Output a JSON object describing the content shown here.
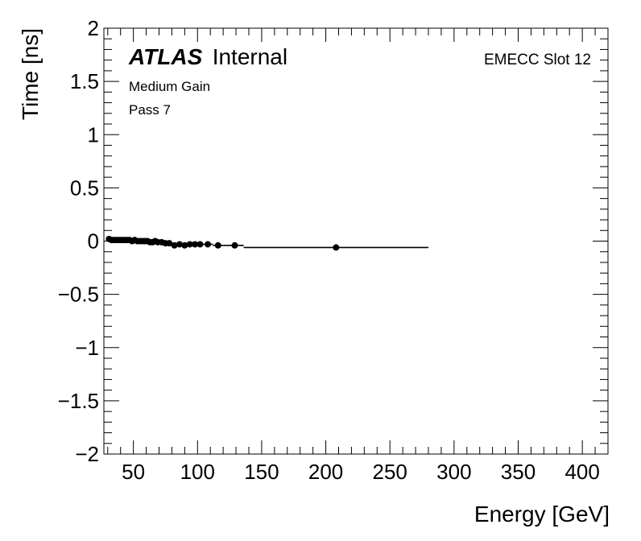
{
  "chart_data": {
    "type": "scatter",
    "title": "",
    "xlabel": "Energy [GeV]",
    "ylabel": "Time [ns]",
    "xlim": [
      27,
      420
    ],
    "ylim": [
      -2,
      2
    ],
    "x_ticks": [
      50,
      100,
      150,
      200,
      250,
      300,
      350,
      400
    ],
    "x_tick_labels": [
      "50",
      "100",
      "150",
      "200",
      "250",
      "300",
      "350",
      "400"
    ],
    "y_ticks": [
      2,
      1.5,
      1,
      0.5,
      0,
      -0.5,
      -1,
      -1.5,
      -2
    ],
    "y_tick_labels": [
      "2",
      "1.5",
      "1",
      "0.5",
      "0",
      "−0.5",
      "−1",
      "−1.5",
      "−2"
    ],
    "grid": false,
    "atlas_label": "ATLAS",
    "status_label": "Internal",
    "annotations": [
      "Medium Gain",
      "Pass 7"
    ],
    "slot_label": "EMECC Slot 12",
    "marker_color": "#000000",
    "points": [
      {
        "x": 31,
        "y": 0.02,
        "xlo": 30,
        "xhi": 32
      },
      {
        "x": 33,
        "y": 0.01,
        "xlo": 32,
        "xhi": 34
      },
      {
        "x": 35,
        "y": 0.01,
        "xlo": 34,
        "xhi": 36
      },
      {
        "x": 37,
        "y": 0.01,
        "xlo": 36,
        "xhi": 38
      },
      {
        "x": 39,
        "y": 0.01,
        "xlo": 38,
        "xhi": 40
      },
      {
        "x": 41,
        "y": 0.01,
        "xlo": 40,
        "xhi": 42
      },
      {
        "x": 43,
        "y": 0.01,
        "xlo": 42,
        "xhi": 44
      },
      {
        "x": 45,
        "y": 0.01,
        "xlo": 44,
        "xhi": 46
      },
      {
        "x": 47,
        "y": 0.01,
        "xlo": 46,
        "xhi": 48
      },
      {
        "x": 49,
        "y": 0.0,
        "xlo": 48,
        "xhi": 50
      },
      {
        "x": 51,
        "y": 0.01,
        "xlo": 50,
        "xhi": 52
      },
      {
        "x": 53,
        "y": 0.0,
        "xlo": 52,
        "xhi": 54
      },
      {
        "x": 55,
        "y": 0.0,
        "xlo": 54,
        "xhi": 56
      },
      {
        "x": 57,
        "y": 0.0,
        "xlo": 56,
        "xhi": 58
      },
      {
        "x": 59,
        "y": 0.0,
        "xlo": 58,
        "xhi": 60
      },
      {
        "x": 61,
        "y": 0.0,
        "xlo": 60,
        "xhi": 62
      },
      {
        "x": 63,
        "y": -0.01,
        "xlo": 62,
        "xhi": 64
      },
      {
        "x": 65,
        "y": -0.01,
        "xlo": 64,
        "xhi": 66
      },
      {
        "x": 67,
        "y": 0.0,
        "xlo": 66,
        "xhi": 68
      },
      {
        "x": 69,
        "y": -0.01,
        "xlo": 68,
        "xhi": 70
      },
      {
        "x": 72,
        "y": -0.01,
        "xlo": 70,
        "xhi": 74
      },
      {
        "x": 75,
        "y": -0.02,
        "xlo": 74,
        "xhi": 76
      },
      {
        "x": 78,
        "y": -0.02,
        "xlo": 76,
        "xhi": 80
      },
      {
        "x": 82,
        "y": -0.04,
        "xlo": 80,
        "xhi": 84
      },
      {
        "x": 86,
        "y": -0.03,
        "xlo": 84,
        "xhi": 88
      },
      {
        "x": 90,
        "y": -0.04,
        "xlo": 88,
        "xhi": 92
      },
      {
        "x": 94,
        "y": -0.03,
        "xlo": 92,
        "xhi": 96
      },
      {
        "x": 98,
        "y": -0.03,
        "xlo": 96,
        "xhi": 100
      },
      {
        "x": 102,
        "y": -0.03,
        "xlo": 100,
        "xhi": 104
      },
      {
        "x": 108,
        "y": -0.03,
        "xlo": 104,
        "xhi": 112
      },
      {
        "x": 116,
        "y": -0.04,
        "xlo": 112,
        "xhi": 120
      },
      {
        "x": 129,
        "y": -0.04,
        "xlo": 120,
        "xhi": 136
      },
      {
        "x": 208,
        "y": -0.06,
        "xlo": 136,
        "xhi": 280
      }
    ]
  }
}
